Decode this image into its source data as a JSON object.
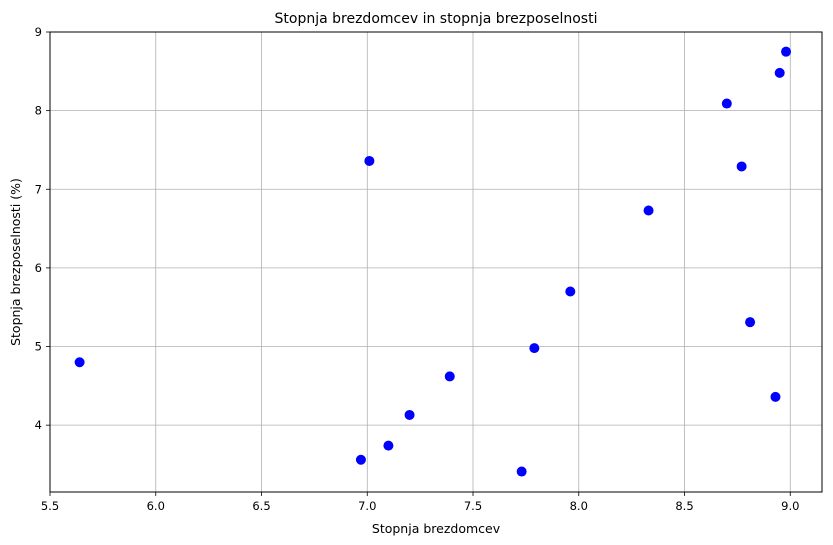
{
  "chart_data": {
    "type": "scatter",
    "title": "Stopnja brezdomcev in stopnja brezposelnosti",
    "xlabel": "Stopnja brezdomcev",
    "ylabel": "Stopnja brezposelnosti (%)",
    "xlim": [
      5.5,
      9.15
    ],
    "ylim": [
      3.15,
      9.0
    ],
    "xticks": [
      "5.5",
      "6.0",
      "6.5",
      "7.0",
      "7.5",
      "8.0",
      "8.5",
      "9.0"
    ],
    "yticks": [
      "4",
      "5",
      "6",
      "7",
      "8",
      "9"
    ],
    "grid": true,
    "point_color": "#0000ff",
    "grid_color": "#b0b0b0",
    "points": [
      {
        "x": 5.64,
        "y": 4.8
      },
      {
        "x": 6.97,
        "y": 3.56
      },
      {
        "x": 7.01,
        "y": 7.36
      },
      {
        "x": 7.1,
        "y": 3.74
      },
      {
        "x": 7.2,
        "y": 4.13
      },
      {
        "x": 7.39,
        "y": 4.62
      },
      {
        "x": 7.73,
        "y": 3.41
      },
      {
        "x": 7.79,
        "y": 4.98
      },
      {
        "x": 7.96,
        "y": 5.7
      },
      {
        "x": 8.33,
        "y": 6.73
      },
      {
        "x": 8.7,
        "y": 8.09
      },
      {
        "x": 8.77,
        "y": 7.29
      },
      {
        "x": 8.81,
        "y": 5.31
      },
      {
        "x": 8.93,
        "y": 4.36
      },
      {
        "x": 8.95,
        "y": 8.48
      },
      {
        "x": 8.98,
        "y": 8.75
      }
    ]
  }
}
